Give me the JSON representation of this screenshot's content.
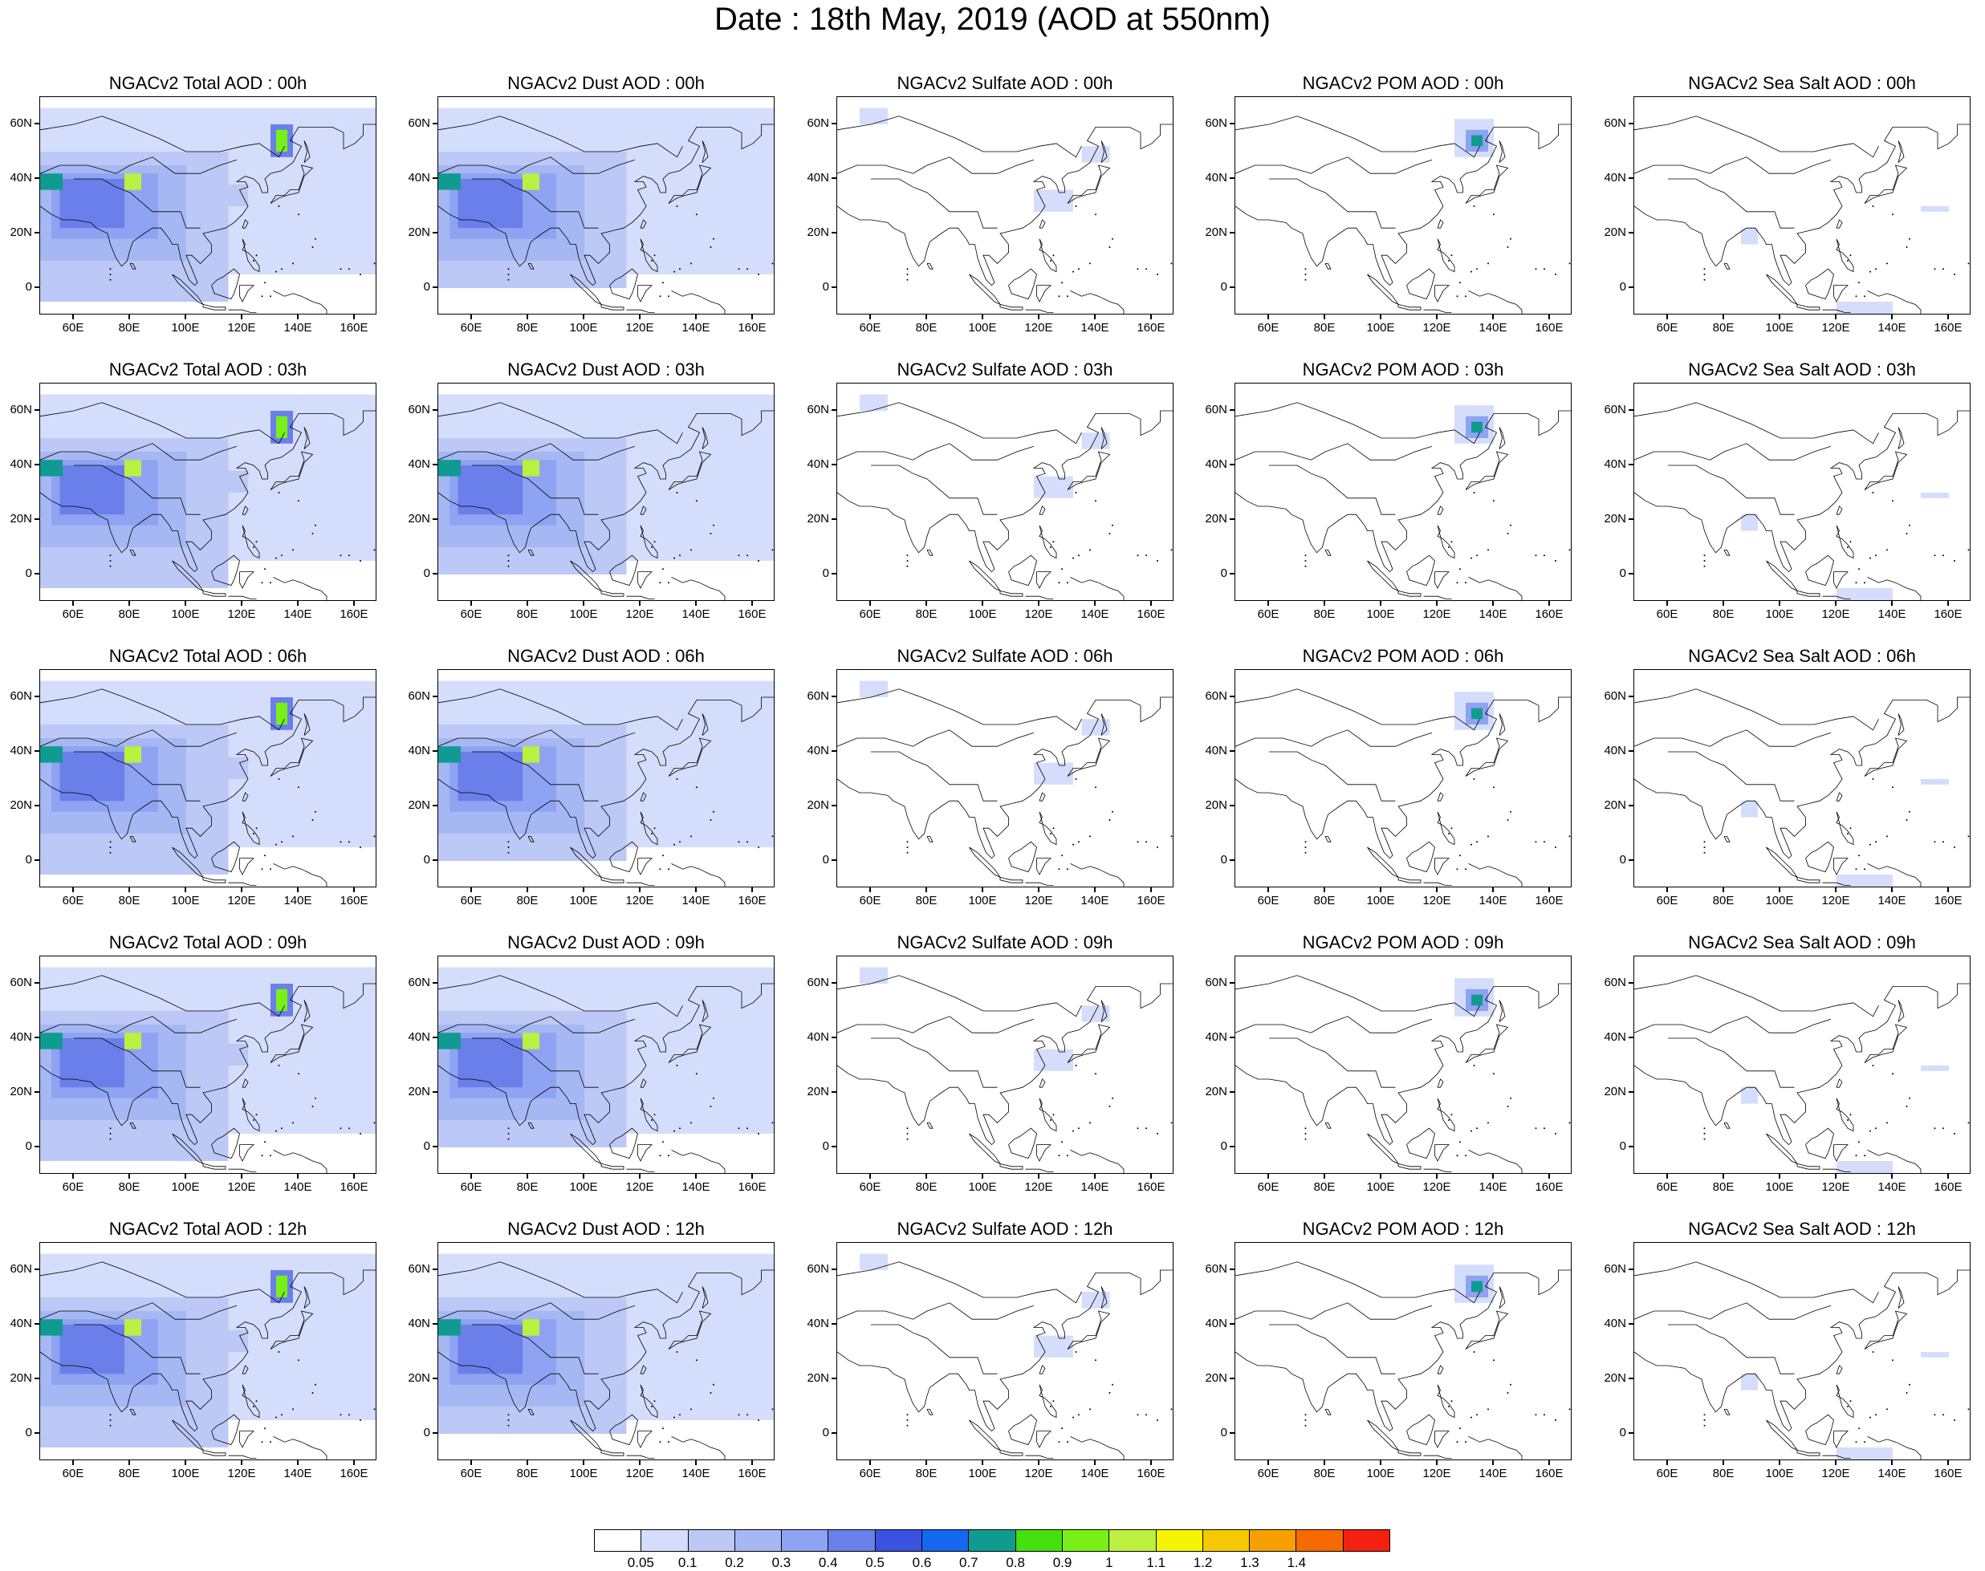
{
  "title": "Date : 18th May, 2019 (AOD at 550nm)",
  "map": {
    "lon_range": [
      48,
      168
    ],
    "lat_range": [
      -10,
      70
    ],
    "lat_ticks": [
      "60N",
      "40N",
      "20N",
      "0"
    ],
    "lat_tick_values": [
      60,
      40,
      20,
      0
    ],
    "lon_ticks": [
      "60E",
      "80E",
      "100E",
      "120E",
      "140E",
      "160E"
    ],
    "lon_tick_values": [
      60,
      80,
      100,
      120,
      140,
      160
    ]
  },
  "colorbar": {
    "levels": [
      "0.05",
      "0.1",
      "0.2",
      "0.3",
      "0.4",
      "0.5",
      "0.6",
      "0.7",
      "0.8",
      "0.9",
      "1",
      "1.1",
      "1.2",
      "1.3",
      "1.4"
    ],
    "colors": [
      "#ffffff",
      "#d4ddfb",
      "#bcc9f6",
      "#a6b8f3",
      "#8ea3f1",
      "#6a7fea",
      "#3b52e0",
      "#1766f0",
      "#109b90",
      "#44e010",
      "#78f018",
      "#bcf040",
      "#f4f400",
      "#f6c800",
      "#f7a000",
      "#f66a00",
      "#f42010"
    ]
  },
  "columns": [
    "total",
    "dust",
    "sulfate",
    "pom",
    "seasalt"
  ],
  "panels": [
    {
      "title": "NGACv2 Total AOD : 00h",
      "species": "total"
    },
    {
      "title": "NGACv2 Dust AOD : 00h",
      "species": "dust"
    },
    {
      "title": "NGACv2 Sulfate AOD : 00h",
      "species": "sulfate"
    },
    {
      "title": "NGACv2 POM AOD : 00h",
      "species": "pom"
    },
    {
      "title": "NGACv2 Sea Salt AOD : 00h",
      "species": "seasalt"
    },
    {
      "title": "NGACv2 Total AOD : 03h",
      "species": "total"
    },
    {
      "title": "NGACv2 Dust AOD : 03h",
      "species": "dust"
    },
    {
      "title": "NGACv2 Sulfate AOD : 03h",
      "species": "sulfate"
    },
    {
      "title": "NGACv2 POM AOD : 03h",
      "species": "pom"
    },
    {
      "title": "NGACv2 Sea Salt AOD : 03h",
      "species": "seasalt"
    },
    {
      "title": "NGACv2 Total AOD : 06h",
      "species": "total"
    },
    {
      "title": "NGACv2 Dust AOD : 06h",
      "species": "dust"
    },
    {
      "title": "NGACv2 Sulfate AOD : 06h",
      "species": "sulfate"
    },
    {
      "title": "NGACv2 POM AOD : 06h",
      "species": "pom"
    },
    {
      "title": "NGACv2 Sea Salt AOD : 06h",
      "species": "seasalt"
    },
    {
      "title": "NGACv2 Total AOD : 09h",
      "species": "total"
    },
    {
      "title": "NGACv2 Dust AOD : 09h",
      "species": "dust"
    },
    {
      "title": "NGACv2 Sulfate AOD : 09h",
      "species": "sulfate"
    },
    {
      "title": "NGACv2 POM AOD : 09h",
      "species": "pom"
    },
    {
      "title": "NGACv2 Sea Salt  AOD : 09h",
      "species": "seasalt"
    },
    {
      "title": "NGACv2 Total AOD  : 12h",
      "species": "total"
    },
    {
      "title": "NGACv2 Dust AOD : 12h",
      "species": "dust"
    },
    {
      "title": "NGACv2 Sulfate AOD : 12h",
      "species": "sulfate"
    },
    {
      "title": "NGACv2 POM  AOD : 12h",
      "species": "pom"
    },
    {
      "title": "NGACv2 Sea Salt  AOD : 12h",
      "species": "seasalt"
    }
  ],
  "fields": {
    "total": [
      {
        "lon": [
          48,
          168
        ],
        "lat": [
          5,
          66
        ],
        "level": 1
      },
      {
        "lon": [
          48,
          115
        ],
        "lat": [
          -5,
          50
        ],
        "level": 2
      },
      {
        "lon": [
          48,
          100
        ],
        "lat": [
          10,
          45
        ],
        "level": 3
      },
      {
        "lon": [
          52,
          90
        ],
        "lat": [
          18,
          42
        ],
        "level": 4
      },
      {
        "lon": [
          55,
          78
        ],
        "lat": [
          22,
          40
        ],
        "level": 5
      },
      {
        "lon": [
          48,
          56
        ],
        "lat": [
          36,
          42
        ],
        "level": 8
      },
      {
        "lon": [
          78,
          84
        ],
        "lat": [
          36,
          42
        ],
        "level": 11
      },
      {
        "lon": [
          110,
          122
        ],
        "lat": [
          30,
          38
        ],
        "level": 2
      },
      {
        "lon": [
          130,
          138
        ],
        "lat": [
          48,
          60
        ],
        "level": 5
      },
      {
        "lon": [
          132,
          136
        ],
        "lat": [
          50,
          58
        ],
        "level": 10
      }
    ],
    "dust": [
      {
        "lon": [
          48,
          168
        ],
        "lat": [
          5,
          66
        ],
        "level": 1
      },
      {
        "lon": [
          48,
          115
        ],
        "lat": [
          0,
          50
        ],
        "level": 2
      },
      {
        "lon": [
          48,
          100
        ],
        "lat": [
          10,
          45
        ],
        "level": 3
      },
      {
        "lon": [
          52,
          90
        ],
        "lat": [
          18,
          42
        ],
        "level": 4
      },
      {
        "lon": [
          55,
          78
        ],
        "lat": [
          22,
          40
        ],
        "level": 5
      },
      {
        "lon": [
          48,
          56
        ],
        "lat": [
          36,
          42
        ],
        "level": 8
      },
      {
        "lon": [
          78,
          84
        ],
        "lat": [
          36,
          42
        ],
        "level": 11
      }
    ],
    "sulfate": [
      {
        "lon": [
          56,
          66
        ],
        "lat": [
          60,
          66
        ],
        "level": 1
      },
      {
        "lon": [
          118,
          132
        ],
        "lat": [
          28,
          36
        ],
        "level": 1
      },
      {
        "lon": [
          135,
          145
        ],
        "lat": [
          46,
          52
        ],
        "level": 1
      }
    ],
    "pom": [
      {
        "lon": [
          126,
          140
        ],
        "lat": [
          48,
          62
        ],
        "level": 1
      },
      {
        "lon": [
          130,
          138
        ],
        "lat": [
          50,
          58
        ],
        "level": 4
      },
      {
        "lon": [
          132,
          136
        ],
        "lat": [
          52,
          56
        ],
        "level": 8
      }
    ],
    "seasalt": [
      {
        "lon": [
          86,
          92
        ],
        "lat": [
          16,
          22
        ],
        "level": 1
      },
      {
        "lon": [
          120,
          140
        ],
        "lat": [
          -10,
          -5
        ],
        "level": 1
      },
      {
        "lon": [
          150,
          160
        ],
        "lat": [
          28,
          30
        ],
        "level": 1
      }
    ]
  },
  "coastlines": [
    [
      [
        48,
        30
      ],
      [
        52,
        27
      ],
      [
        56,
        25
      ],
      [
        60,
        25
      ],
      [
        66,
        24
      ],
      [
        68,
        22
      ],
      [
        72,
        20
      ],
      [
        73,
        16
      ],
      [
        75,
        11
      ],
      [
        77,
        8
      ],
      [
        79,
        10
      ],
      [
        80,
        14
      ],
      [
        81,
        17
      ],
      [
        85,
        20
      ],
      [
        88,
        22
      ],
      [
        91,
        22
      ],
      [
        94,
        18
      ],
      [
        95,
        16
      ],
      [
        97,
        16
      ],
      [
        98,
        11
      ],
      [
        99,
        8
      ],
      [
        101,
        3
      ],
      [
        103,
        1
      ],
      [
        104,
        2
      ],
      [
        102,
        7
      ],
      [
        100,
        12
      ],
      [
        102,
        12
      ],
      [
        105,
        9
      ],
      [
        107,
        11
      ],
      [
        109,
        13
      ],
      [
        109,
        16
      ],
      [
        106,
        20
      ],
      [
        110,
        21
      ],
      [
        114,
        22
      ],
      [
        117,
        24
      ],
      [
        120,
        27
      ],
      [
        122,
        30
      ],
      [
        121,
        32
      ],
      [
        120,
        34
      ],
      [
        119,
        36
      ],
      [
        122,
        37
      ],
      [
        121,
        39
      ],
      [
        118,
        39
      ],
      [
        121,
        41
      ],
      [
        124,
        40
      ],
      [
        126,
        38
      ],
      [
        127,
        35
      ],
      [
        129,
        35
      ],
      [
        129,
        37
      ],
      [
        128,
        40
      ],
      [
        130,
        42
      ],
      [
        134,
        43
      ],
      [
        138,
        46
      ],
      [
        141,
        52
      ],
      [
        137,
        54
      ],
      [
        140,
        59
      ],
      [
        145,
        59
      ],
      [
        152,
        59
      ],
      [
        156,
        57
      ],
      [
        156,
        51
      ],
      [
        160,
        53
      ],
      [
        163,
        56
      ],
      [
        163,
        60
      ],
      [
        168,
        60
      ]
    ],
    [
      [
        48,
        58
      ],
      [
        60,
        60
      ],
      [
        70,
        63
      ],
      [
        78,
        60
      ],
      [
        90,
        55
      ],
      [
        100,
        50
      ],
      [
        112,
        50
      ],
      [
        120,
        52
      ],
      [
        126,
        53
      ],
      [
        133,
        48
      ],
      [
        135,
        52
      ]
    ],
    [
      [
        60,
        40
      ],
      [
        70,
        40
      ],
      [
        75,
        37
      ],
      [
        80,
        35
      ],
      [
        88,
        28
      ],
      [
        95,
        28
      ],
      [
        98,
        28
      ],
      [
        100,
        22
      ],
      [
        105,
        22
      ]
    ],
    [
      [
        48,
        42
      ],
      [
        55,
        45
      ],
      [
        65,
        45
      ],
      [
        75,
        42
      ],
      [
        80,
        45
      ],
      [
        88,
        48
      ],
      [
        96,
        42
      ],
      [
        105,
        42
      ],
      [
        112,
        45
      ],
      [
        118,
        47
      ]
    ],
    [
      [
        80,
        9
      ],
      [
        81,
        7
      ],
      [
        82,
        7
      ],
      [
        81,
        9
      ],
      [
        80,
        9
      ]
    ],
    [
      [
        130,
        31
      ],
      [
        132,
        34
      ],
      [
        135,
        34
      ],
      [
        137,
        36
      ],
      [
        140,
        36
      ],
      [
        141,
        39
      ],
      [
        142,
        42
      ],
      [
        141,
        45
      ],
      [
        145,
        44
      ],
      [
        142,
        41
      ],
      [
        141,
        38
      ],
      [
        140,
        35
      ],
      [
        136,
        34
      ],
      [
        133,
        33
      ],
      [
        130,
        31
      ]
    ],
    [
      [
        142,
        46
      ],
      [
        143,
        50
      ],
      [
        142,
        54
      ],
      [
        143,
        52
      ],
      [
        144,
        48
      ],
      [
        142,
        46
      ]
    ],
    [
      [
        120,
        22
      ],
      [
        121,
        25
      ],
      [
        122,
        24
      ],
      [
        121,
        22
      ],
      [
        120,
        22
      ]
    ],
    [
      [
        120,
        18
      ],
      [
        121,
        16
      ],
      [
        120,
        14
      ],
      [
        122,
        13
      ],
      [
        124,
        11
      ],
      [
        126,
        8
      ],
      [
        126,
        6
      ],
      [
        124,
        7
      ],
      [
        122,
        10
      ],
      [
        121,
        14
      ],
      [
        120,
        18
      ]
    ],
    [
      [
        109,
        1
      ],
      [
        111,
        3
      ],
      [
        113,
        4
      ],
      [
        117,
        7
      ],
      [
        119,
        5
      ],
      [
        118,
        1
      ],
      [
        117,
        -2
      ],
      [
        116,
        -4
      ],
      [
        113,
        -3
      ],
      [
        110,
        -2
      ],
      [
        109,
        1
      ]
    ],
    [
      [
        95,
        5
      ],
      [
        98,
        3
      ],
      [
        101,
        0
      ],
      [
        104,
        -3
      ],
      [
        106,
        -6
      ],
      [
        104,
        -5
      ],
      [
        102,
        -3
      ],
      [
        100,
        -1
      ],
      [
        97,
        2
      ],
      [
        95,
        5
      ]
    ],
    [
      [
        106,
        -6
      ],
      [
        110,
        -7
      ],
      [
        114,
        -7
      ],
      [
        114,
        -8
      ],
      [
        110,
        -8
      ],
      [
        106,
        -7
      ],
      [
        106,
        -6
      ]
    ],
    [
      [
        119,
        1
      ],
      [
        121,
        1
      ],
      [
        124,
        1
      ],
      [
        122,
        -1
      ],
      [
        121,
        -3
      ],
      [
        120,
        -5
      ],
      [
        119,
        -3
      ],
      [
        119,
        1
      ]
    ],
    [
      [
        131,
        -1
      ],
      [
        135,
        -3
      ],
      [
        138,
        -2
      ],
      [
        141,
        -3
      ],
      [
        145,
        -5
      ],
      [
        148,
        -6
      ],
      [
        150,
        -8
      ],
      [
        150,
        -10
      ]
    ],
    [
      [
        115,
        -8
      ],
      [
        120,
        -8
      ],
      [
        123,
        -9
      ],
      [
        125,
        -9
      ]
    ]
  ],
  "islands": [
    [
      124,
      10
    ],
    [
      125,
      12
    ],
    [
      128,
      2
    ],
    [
      130,
      -3
    ],
    [
      127,
      -3
    ],
    [
      132,
      6
    ],
    [
      134,
      7
    ],
    [
      138,
      9
    ],
    [
      145,
      15
    ],
    [
      146,
      18
    ],
    [
      155,
      7
    ],
    [
      158,
      7
    ],
    [
      162,
      5
    ],
    [
      167,
      9
    ],
    [
      133,
      30
    ],
    [
      140,
      27
    ],
    [
      73,
      3
    ],
    [
      73,
      5
    ],
    [
      73,
      7
    ]
  ]
}
